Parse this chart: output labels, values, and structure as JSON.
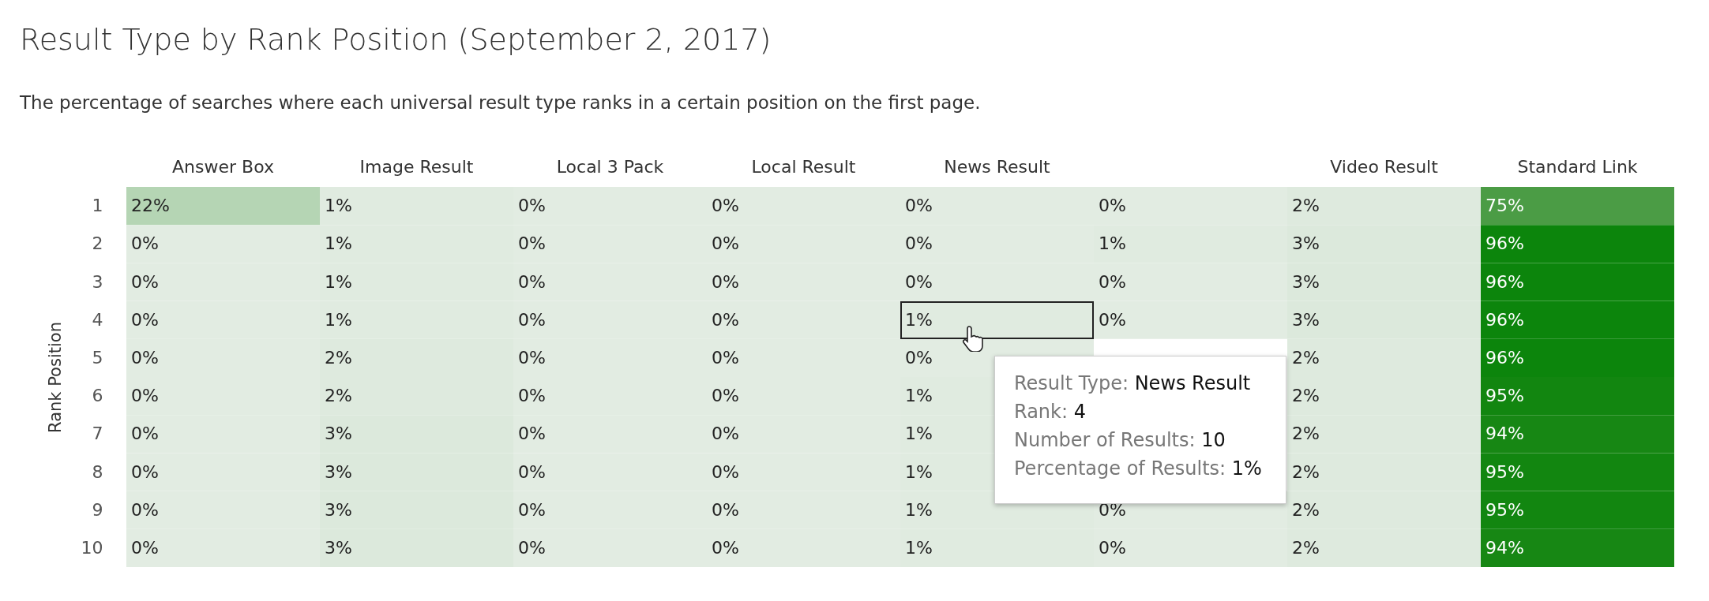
{
  "chart_data": {
    "type": "heatmap",
    "title": "Result Type by Rank Position (September 2, 2017)",
    "subtitle": "The percentage of searches where each universal result type ranks in a certain position on the first page.",
    "ylabel": "Rank Position",
    "categories": [
      "Answer Box",
      "Image Result",
      "Local 3 Pack",
      "Local Result",
      "News Result",
      null,
      "Video Result",
      "Standard Link"
    ],
    "y_categories": [
      "1",
      "2",
      "3",
      "4",
      "5",
      "6",
      "7",
      "8",
      "9",
      "10"
    ],
    "cells": [
      [
        22,
        1,
        0,
        0,
        0,
        0,
        2,
        75
      ],
      [
        0,
        1,
        0,
        0,
        0,
        1,
        3,
        96
      ],
      [
        0,
        1,
        0,
        0,
        0,
        0,
        3,
        96
      ],
      [
        0,
        1,
        0,
        0,
        1,
        0,
        3,
        96
      ],
      [
        0,
        2,
        0,
        0,
        0,
        null,
        2,
        96
      ],
      [
        0,
        2,
        0,
        0,
        1,
        null,
        2,
        95
      ],
      [
        0,
        3,
        0,
        0,
        1,
        null,
        2,
        94
      ],
      [
        0,
        3,
        0,
        0,
        1,
        null,
        2,
        95
      ],
      [
        0,
        3,
        0,
        0,
        1,
        0,
        2,
        95
      ],
      [
        0,
        3,
        0,
        0,
        1,
        0,
        2,
        94
      ]
    ],
    "cell_labels": [
      [
        "22%",
        "1%",
        "0%",
        "0%",
        "0%",
        "0%",
        "2%",
        "75%"
      ],
      [
        "0%",
        "1%",
        "0%",
        "0%",
        "0%",
        "1%",
        "3%",
        "96%"
      ],
      [
        "0%",
        "1%",
        "0%",
        "0%",
        "0%",
        "0%",
        "3%",
        "96%"
      ],
      [
        "0%",
        "1%",
        "0%",
        "0%",
        "1%",
        "0%",
        "3%",
        "96%"
      ],
      [
        "0%",
        "2%",
        "0%",
        "0%",
        "0%",
        null,
        "2%",
        "96%"
      ],
      [
        "0%",
        "2%",
        "0%",
        "0%",
        "1%",
        null,
        "2%",
        "95%"
      ],
      [
        "0%",
        "3%",
        "0%",
        "0%",
        "1%",
        null,
        "2%",
        "94%"
      ],
      [
        "0%",
        "3%",
        "0%",
        "0%",
        "1%",
        null,
        "2%",
        "95%"
      ],
      [
        "0%",
        "3%",
        "0%",
        "0%",
        "1%",
        "0%",
        "2%",
        "95%"
      ],
      [
        "0%",
        "3%",
        "0%",
        "0%",
        "1%",
        "0%",
        "2%",
        "94%"
      ]
    ],
    "annotations": [
      "Result Type: News Result",
      "Rank: 4",
      "Number of Results: 10",
      "Percentage of Results: 1%"
    ]
  }
}
